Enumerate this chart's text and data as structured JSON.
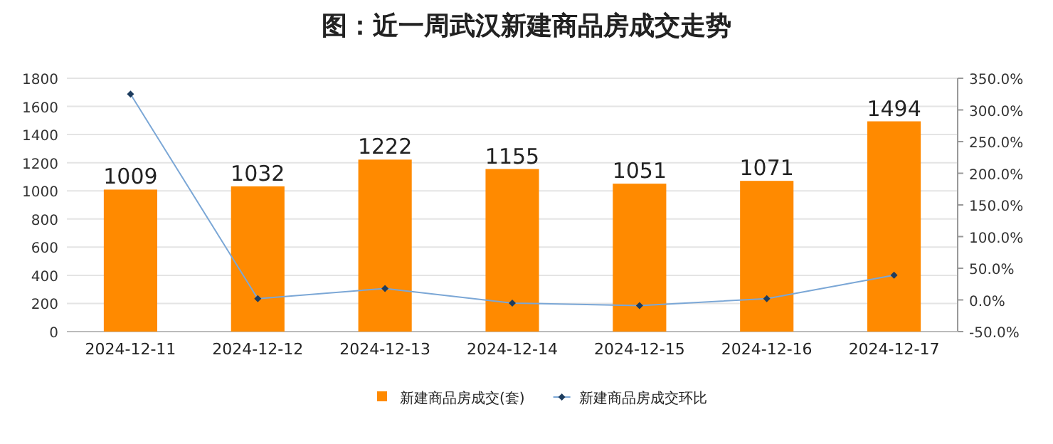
{
  "chart_data": {
    "type": "bar",
    "title": "图：近一周武汉新建商品房成交走势",
    "categories": [
      "2024-12-11",
      "2024-12-12",
      "2024-12-13",
      "2024-12-14",
      "2024-12-15",
      "2024-12-16",
      "2024-12-17"
    ],
    "series": [
      {
        "name": "新建商品房成交(套)",
        "color": "#ff8a00",
        "values": [
          1009,
          1032,
          1222,
          1155,
          1051,
          1071,
          1494
        ],
        "value_labels": [
          "1009",
          "1032",
          "1222",
          "1155",
          "1051",
          "1071",
          "1494"
        ]
      },
      {
        "name": "新建商品房成交环比",
        "type": "line",
        "axis": "y2",
        "color": "#7ba7d6",
        "marker": "diamond",
        "values": [
          325,
          2,
          18,
          -5,
          -9,
          2,
          39
        ]
      }
    ],
    "ylim": [
      0,
      1800
    ],
    "yticks": [
      0,
      200,
      400,
      600,
      800,
      1000,
      1200,
      1400,
      1600,
      1800
    ],
    "y2lim": [
      -50,
      350
    ],
    "y2ticks": [
      {
        "value": -50,
        "label": "-50.0%"
      },
      {
        "value": 0,
        "label": "0.0%"
      },
      {
        "value": 50,
        "label": "50.0%"
      },
      {
        "value": 100,
        "label": "100.0%"
      },
      {
        "value": 150,
        "label": "150.0%"
      },
      {
        "value": 200,
        "label": "200.0%"
      },
      {
        "value": 250,
        "label": "250.0%"
      },
      {
        "value": 300,
        "label": "300.0%"
      },
      {
        "value": 350,
        "label": "350.0%"
      }
    ],
    "grid": "y",
    "legend": "bottom"
  }
}
